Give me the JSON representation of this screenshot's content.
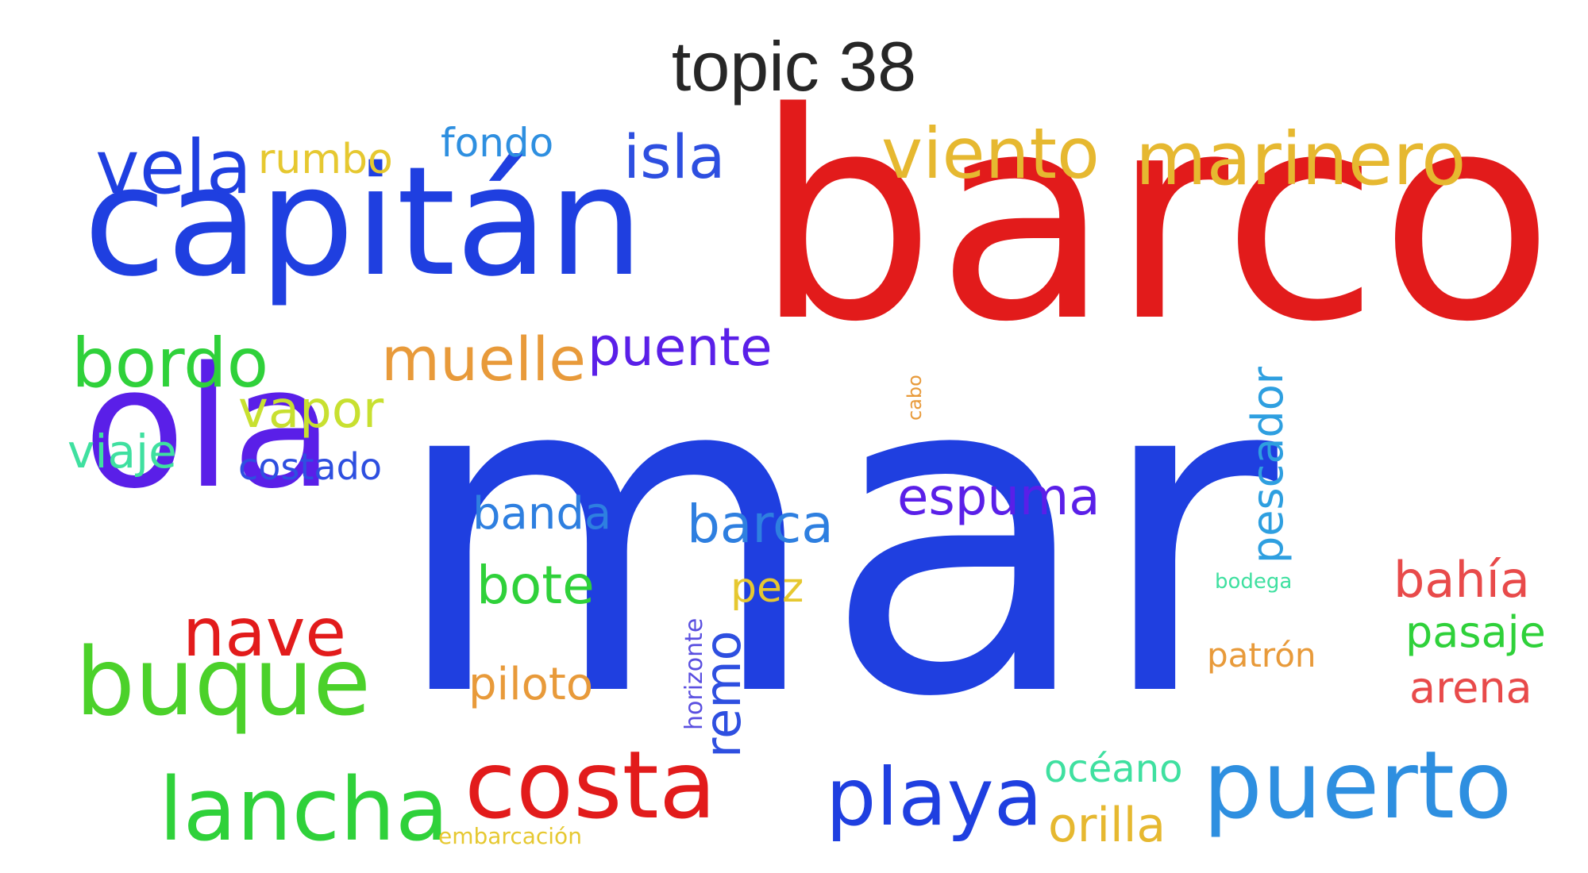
{
  "title": "topic 38",
  "colors": {
    "blue": "#1f3fe0",
    "red": "#e21b1b",
    "purple": "#5a1fe8",
    "green": "#2fd13a",
    "yellow": "#e6b830",
    "orange": "#e89a3a",
    "lightblue": "#2e8fe0",
    "teal": "#3fe0a0",
    "lime": "#c8e030"
  },
  "words": [
    {
      "text": "mar",
      "color": "#1f3fe0"
    },
    {
      "text": "barco",
      "color": "#e21b1b"
    },
    {
      "text": "capitán",
      "color": "#1f3fe0"
    },
    {
      "text": "ola",
      "color": "#5a1fe8"
    },
    {
      "text": "buque",
      "color": "#4bd12a"
    },
    {
      "text": "puerto",
      "color": "#2e8fe0"
    },
    {
      "text": "costa",
      "color": "#e21b1b"
    },
    {
      "text": "lancha",
      "color": "#2fd13a"
    },
    {
      "text": "playa",
      "color": "#1f3fe0"
    },
    {
      "text": "marinero",
      "color": "#e6b830"
    },
    {
      "text": "viento",
      "color": "#e6b830"
    },
    {
      "text": "vela",
      "color": "#1f3fe0"
    },
    {
      "text": "bordo",
      "color": "#2fd13a"
    },
    {
      "text": "nave",
      "color": "#e21b1b"
    },
    {
      "text": "muelle",
      "color": "#e89a3a"
    },
    {
      "text": "puente",
      "color": "#5a1fe8"
    },
    {
      "text": "isla",
      "color": "#2e4fe0"
    },
    {
      "text": "espuma",
      "color": "#5a1fe8"
    },
    {
      "text": "barca",
      "color": "#2e7fe0"
    },
    {
      "text": "bote",
      "color": "#2fd13a"
    },
    {
      "text": "bahía",
      "color": "#e84a4a"
    },
    {
      "text": "vapor",
      "color": "#c8e030"
    },
    {
      "text": "viaje",
      "color": "#3fe0a0"
    },
    {
      "text": "banda",
      "color": "#2e7fe0"
    },
    {
      "text": "remo",
      "color": "#2e4fe0"
    },
    {
      "text": "pescador",
      "color": "#2e9fe0"
    },
    {
      "text": "pasaje",
      "color": "#2fd13a"
    },
    {
      "text": "arena",
      "color": "#e84a4a"
    },
    {
      "text": "piloto",
      "color": "#e89a3a"
    },
    {
      "text": "orilla",
      "color": "#e6b830"
    },
    {
      "text": "rumbo",
      "color": "#e6c830"
    },
    {
      "text": "fondo",
      "color": "#2e8fe0"
    },
    {
      "text": "costado",
      "color": "#2e4fe0"
    },
    {
      "text": "pez",
      "color": "#e6c830"
    },
    {
      "text": "océano",
      "color": "#3fe0a0"
    },
    {
      "text": "patrón",
      "color": "#e89a3a"
    },
    {
      "text": "horizonte",
      "color": "#5a4fe0"
    },
    {
      "text": "bodega",
      "color": "#3fe0a0"
    },
    {
      "text": "cabo",
      "color": "#e89a3a"
    },
    {
      "text": "embarcación",
      "color": "#e6c830"
    }
  ]
}
